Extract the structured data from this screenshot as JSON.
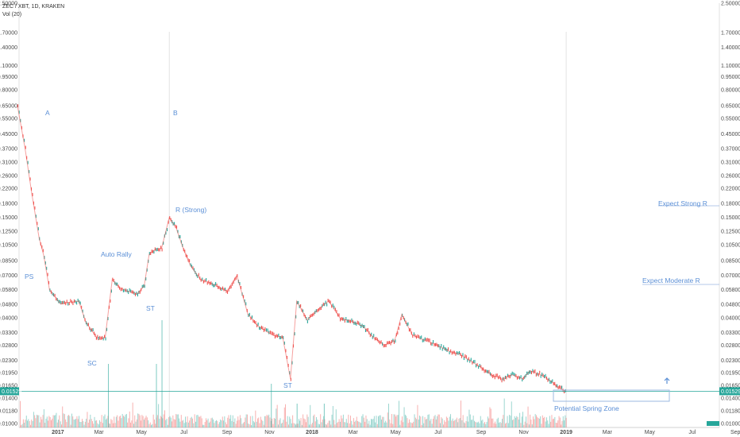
{
  "header": {
    "symbol_line": "ZEC / XBT, 1D, KRAKEN",
    "volume_line": "Vol (20)"
  },
  "chart_data": {
    "type": "line",
    "scale": "log",
    "ylim": [
      0.0095,
      2.5
    ],
    "price_tick_labels": [
      "2.50000",
      "1.70000",
      "1.40000",
      "1.10000",
      "0.95000",
      "0.80000",
      "0.65000",
      "0.55000",
      "0.45000",
      "0.37000",
      "0.31000",
      "0.26000",
      "0.22000",
      "0.18000",
      "0.15000",
      "0.12500",
      "0.10500",
      "0.08500",
      "0.07000",
      "0.05800",
      "0.04800",
      "0.04000",
      "0.03300",
      "0.02800",
      "0.02300",
      "0.01950",
      "0.01650",
      "0.01400",
      "0.01180",
      "0.01000"
    ],
    "x_tick_labels": [
      "2017",
      "Mar",
      "May",
      "Jul",
      "Sep",
      "Nov",
      "2018",
      "Mar",
      "May",
      "Jul",
      "Sep",
      "Nov",
      "2019",
      "Mar",
      "May",
      "Jul",
      "Sep"
    ],
    "x_tick_dates": [
      "2017-01-01",
      "2017-03-01",
      "2017-05-01",
      "2017-07-01",
      "2017-09-01",
      "2017-11-01",
      "2018-01-01",
      "2018-03-01",
      "2018-05-01",
      "2018-07-01",
      "2018-09-01",
      "2018-11-01",
      "2019-01-01",
      "2019-03-01",
      "2019-05-01",
      "2019-07-01",
      "2019-09-01"
    ],
    "series": [
      {
        "dates": [
          "2016-11-04",
          "2016-11-15",
          "2016-11-25",
          "2016-12-05",
          "2016-12-12",
          "2016-12-20",
          "2017-01-05",
          "2017-01-15",
          "2017-01-31",
          "2017-02-10",
          "2017-02-28",
          "2017-03-10",
          "2017-03-20",
          "2017-03-30",
          "2017-04-10",
          "2017-04-25",
          "2017-05-05",
          "2017-05-12",
          "2017-05-20",
          "2017-05-30",
          "2017-06-10",
          "2017-06-20",
          "2017-06-30",
          "2017-07-10",
          "2017-07-25",
          "2017-08-05",
          "2017-08-20",
          "2017-09-01",
          "2017-09-15",
          "2017-10-01",
          "2017-10-15",
          "2017-10-25",
          "2017-11-05",
          "2017-11-20",
          "2017-12-01",
          "2017-12-10",
          "2017-12-25",
          "2018-01-10",
          "2018-01-25",
          "2018-02-10",
          "2018-02-28",
          "2018-03-15",
          "2018-03-30",
          "2018-04-15",
          "2018-04-30",
          "2018-05-10",
          "2018-05-25",
          "2018-06-10",
          "2018-06-30",
          "2018-07-15",
          "2018-07-31",
          "2018-08-15",
          "2018-08-31",
          "2018-09-15",
          "2018-09-30",
          "2018-10-15",
          "2018-10-31",
          "2018-11-10",
          "2018-11-25",
          "2018-12-10",
          "2018-12-20",
          "2019-01-01"
        ],
        "values": [
          0.65,
          0.37,
          0.2,
          0.115,
          0.09,
          0.058,
          0.048,
          0.049,
          0.05,
          0.038,
          0.03,
          0.031,
          0.066,
          0.06,
          0.057,
          0.055,
          0.061,
          0.092,
          0.098,
          0.1,
          0.15,
          0.13,
          0.1,
          0.08,
          0.066,
          0.064,
          0.06,
          0.057,
          0.07,
          0.042,
          0.036,
          0.034,
          0.032,
          0.031,
          0.018,
          0.05,
          0.039,
          0.045,
          0.05,
          0.04,
          0.038,
          0.036,
          0.031,
          0.028,
          0.03,
          0.042,
          0.032,
          0.03,
          0.028,
          0.026,
          0.025,
          0.023,
          0.021,
          0.019,
          0.018,
          0.019,
          0.018,
          0.02,
          0.019,
          0.0175,
          0.016,
          0.01529
        ]
      }
    ],
    "current_price": "0.01529",
    "annotations": [
      "A",
      "B",
      "R (Strong)",
      "Auto Rally",
      "PS",
      "ST",
      "SC",
      "ST",
      "Expect Strong R",
      "Expect Moderate R",
      "Potential Spring Zone"
    ],
    "colors": {
      "up": "#26a69a",
      "down": "#ef5350",
      "annotation": "#5b8fd6",
      "price_line": "#26a69a"
    }
  }
}
